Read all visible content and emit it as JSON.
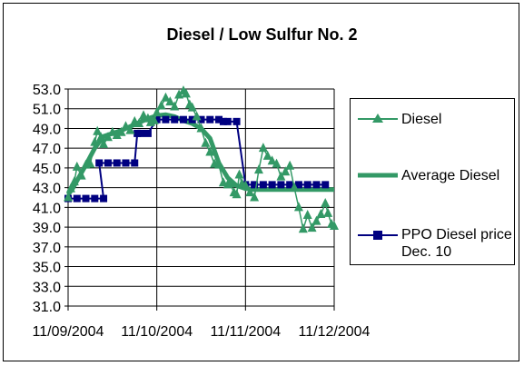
{
  "chart_data": {
    "type": "line",
    "title": "Diesel / Low Sulfur No. 2",
    "xlabel": "",
    "ylabel": "",
    "ylim": [
      31.0,
      53.0
    ],
    "y_ticks": [
      "31.0",
      "33.0",
      "35.0",
      "37.0",
      "39.0",
      "41.0",
      "43.0",
      "45.0",
      "47.0",
      "49.0",
      "51.0",
      "53.0"
    ],
    "x_ticks": [
      "11/09/2004",
      "11/10/2004",
      "11/11/2004",
      "11/12/2004"
    ],
    "xlim_days": [
      0,
      3
    ],
    "grid": "horizontal",
    "legend_position": "right",
    "series": [
      {
        "name": "Diesel",
        "color": "#339966",
        "marker": "triangle",
        "x": [
          0.0,
          0.03,
          0.07,
          0.1,
          0.15,
          0.2,
          0.25,
          0.3,
          0.33,
          0.37,
          0.4,
          0.45,
          0.5,
          0.55,
          0.6,
          0.65,
          0.7,
          0.75,
          0.8,
          0.85,
          0.9,
          0.93,
          0.97,
          1.0,
          1.05,
          1.1,
          1.15,
          1.2,
          1.25,
          1.3,
          1.33,
          1.37,
          1.4,
          1.45,
          1.5,
          1.55,
          1.6,
          1.65,
          1.7,
          1.75,
          1.8,
          1.83,
          1.87,
          1.9,
          1.93,
          1.96,
          2.0,
          2.05,
          2.1,
          2.15,
          2.2,
          2.25,
          2.3,
          2.35,
          2.4,
          2.45,
          2.5,
          2.55,
          2.6,
          2.65,
          2.7,
          2.75,
          2.8,
          2.85,
          2.9,
          2.93,
          2.97,
          3.0
        ],
        "y": [
          42.0,
          42.9,
          43.6,
          45.1,
          44.2,
          45.3,
          45.4,
          47.6,
          48.7,
          48.1,
          47.4,
          48.1,
          48.6,
          48.3,
          48.6,
          49.2,
          48.8,
          49.7,
          49.5,
          50.3,
          50.0,
          49.6,
          49.8,
          50.6,
          51.3,
          52.1,
          51.7,
          51.2,
          52.4,
          52.8,
          52.5,
          51.4,
          51.1,
          50.2,
          49.0,
          47.5,
          46.6,
          45.4,
          45.3,
          43.5,
          43.3,
          43.4,
          42.5,
          42.3,
          44.3,
          43.4,
          43.2,
          42.5,
          42.0,
          44.8,
          47.0,
          46.2,
          45.7,
          45.4,
          44.1,
          44.6,
          45.2,
          43.0,
          41.0,
          38.8,
          40.2,
          38.9,
          39.6,
          40.3,
          41.4,
          40.4,
          39.3,
          39.1
        ]
      },
      {
        "name": "Average Diesel",
        "color": "#339966",
        "marker": "none",
        "x": [
          0.0,
          0.05,
          0.1,
          0.15,
          0.2,
          0.3,
          0.4,
          0.5,
          0.6,
          0.7,
          0.8,
          0.9,
          1.0,
          1.1,
          1.2,
          1.3,
          1.4,
          1.5,
          1.6,
          1.7,
          1.8,
          1.9,
          2.0,
          2.1,
          2.2,
          2.3,
          2.4,
          2.5,
          2.6,
          2.7,
          2.8,
          2.9,
          3.0
        ],
        "y": [
          42.3,
          42.9,
          43.7,
          44.5,
          45.3,
          47.0,
          48.2,
          48.5,
          48.8,
          49.2,
          49.6,
          50.0,
          50.3,
          50.4,
          50.2,
          49.8,
          49.5,
          49.0,
          48.0,
          45.5,
          44.0,
          43.2,
          42.9,
          42.8,
          42.8,
          42.8,
          42.8,
          42.8,
          42.8,
          42.8,
          42.8,
          42.8,
          42.8
        ]
      },
      {
        "name": "PPO Diesel price Dec. 10",
        "color": "#000080",
        "marker": "square",
        "x": [
          0.0,
          0.1,
          0.2,
          0.3,
          0.4,
          0.35,
          0.45,
          0.55,
          0.65,
          0.75,
          0.78,
          0.82,
          0.9,
          1.0,
          1.1,
          1.2,
          1.3,
          1.4,
          1.5,
          1.6,
          1.7,
          1.75,
          1.8,
          1.9,
          2.0,
          2.1,
          2.2,
          2.3,
          2.4,
          2.5,
          2.6,
          2.7,
          2.8,
          2.9
        ],
        "y": [
          41.9,
          41.9,
          41.9,
          41.9,
          41.9,
          45.5,
          45.5,
          45.5,
          45.5,
          45.5,
          48.5,
          48.5,
          48.5,
          49.9,
          49.9,
          49.9,
          49.9,
          49.9,
          49.9,
          49.9,
          49.9,
          49.7,
          49.7,
          49.7,
          43.3,
          43.3,
          43.3,
          43.3,
          43.3,
          43.3,
          43.3,
          43.3,
          43.3,
          43.3
        ]
      }
    ]
  }
}
